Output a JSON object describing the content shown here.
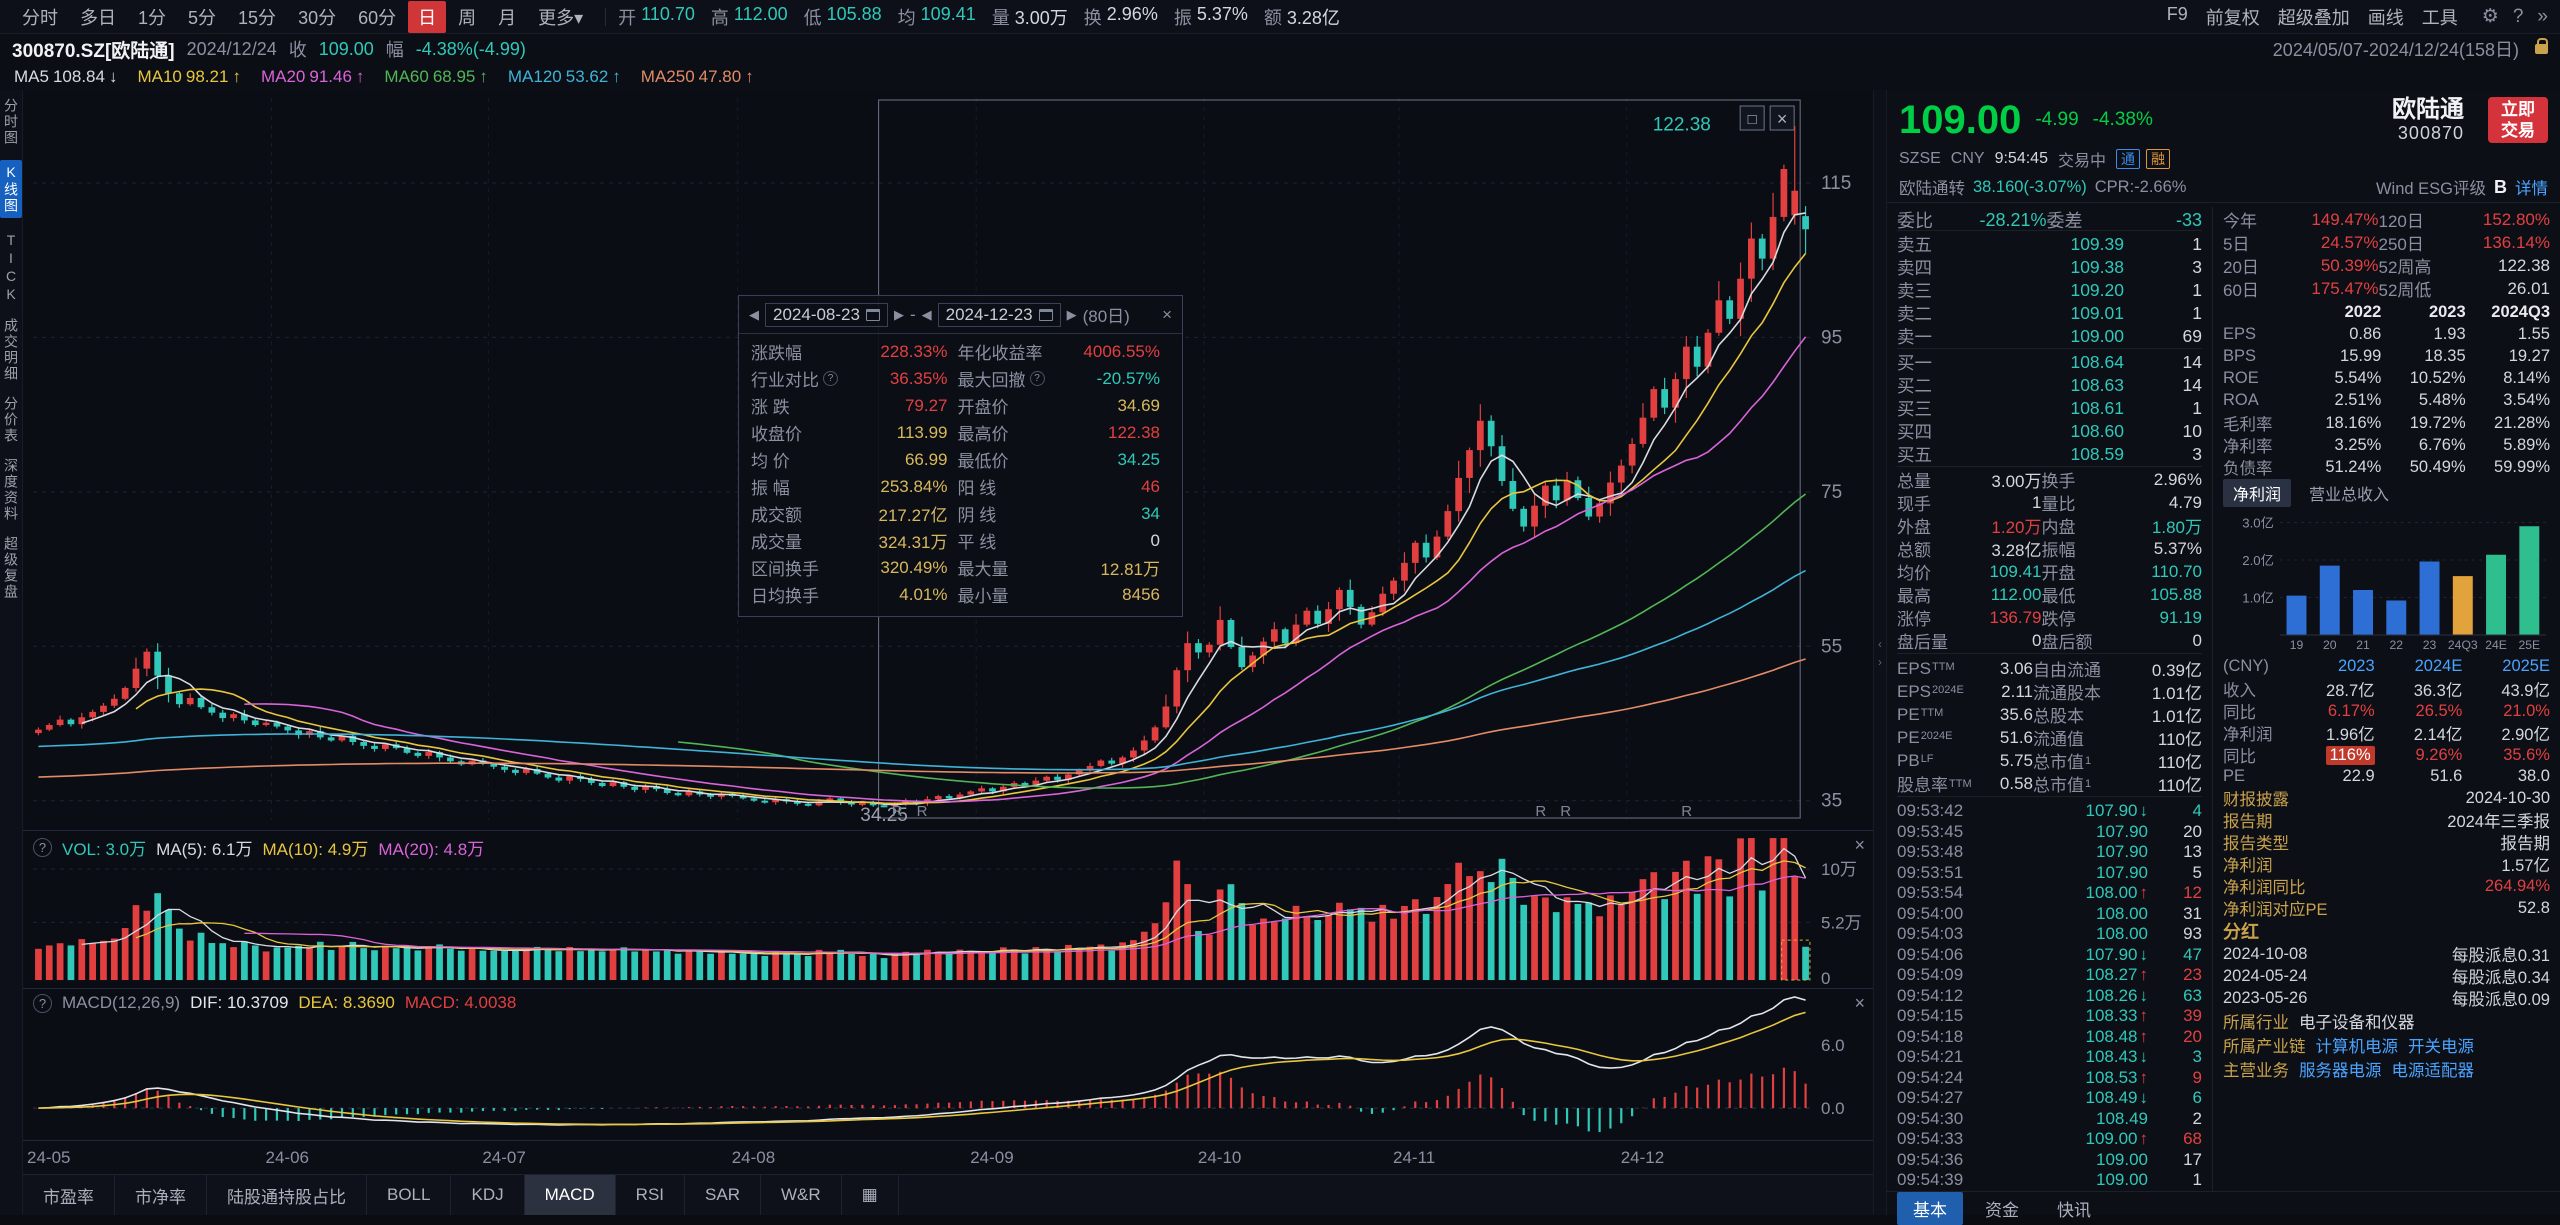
{
  "colors": {
    "up": "#e24040",
    "down": "#2fc8b9",
    "price_green": "#00cf46",
    "tab_red": "#d03538",
    "gold": "#c9a24b",
    "link": "#4aa3ff"
  },
  "glyphs": {
    "prev": "◀",
    "next": "▶",
    "close": "×",
    "box": "□",
    "gear": "⚙",
    "help": "?",
    "collapse": "»",
    "grid": "▦",
    "caret": "▾",
    "up": "↑",
    "down": "↓",
    "left": "‹",
    "right": "›"
  },
  "toolbar": {
    "periods": [
      "分时",
      "多日",
      "1分",
      "5分",
      "15分",
      "30分",
      "60分",
      "日",
      "周",
      "月",
      "更多"
    ],
    "active_index": 7,
    "stats": [
      {
        "l": "开",
        "v": "110.70",
        "c": "down"
      },
      {
        "l": "高",
        "v": "112.00",
        "c": "down"
      },
      {
        "l": "低",
        "v": "105.88",
        "c": "down"
      },
      {
        "l": "均",
        "v": "109.41",
        "c": "down"
      },
      {
        "l": "量",
        "v": "3.00万",
        "c": "plain"
      },
      {
        "l": "换",
        "v": "2.96%",
        "c": "plain"
      },
      {
        "l": "振",
        "v": "5.37%",
        "c": "plain"
      },
      {
        "l": "额",
        "v": "3.28亿",
        "c": "plain"
      }
    ],
    "tools": [
      "F9",
      "前复权",
      "超级叠加",
      "画线",
      "工具"
    ]
  },
  "info_bar": {
    "code": "300870.SZ[欧陆通]",
    "date": "2024/12/24",
    "close_label": "收",
    "close": "109.00",
    "amp_label": "幅",
    "amp": "-4.38%(-4.99)",
    "range": "2024/05/07-2024/12/24(158日)"
  },
  "ma_bar": [
    {
      "label": "MA5",
      "value": "108.84",
      "arrow": "↓",
      "color": "#d8dbe0"
    },
    {
      "label": "MA10",
      "value": "98.21",
      "arrow": "↑",
      "color": "#e8c63e"
    },
    {
      "label": "MA20",
      "value": "91.46",
      "arrow": "↑",
      "color": "#d964d9"
    },
    {
      "label": "MA60",
      "value": "68.95",
      "arrow": "↑",
      "color": "#52b556"
    },
    {
      "label": "MA120",
      "value": "53.62",
      "arrow": "↑",
      "color": "#3fb3d8"
    },
    {
      "label": "MA250",
      "value": "47.80",
      "arrow": "↑",
      "color": "#e28b66"
    }
  ],
  "left_tabs": [
    {
      "label": "分时图"
    },
    {
      "label": "K线图",
      "active": true
    },
    {
      "label": "TICK"
    },
    {
      "label": "成交明细"
    },
    {
      "label": "分价表"
    },
    {
      "label": "深度资料"
    },
    {
      "label": "超级复盘"
    }
  ],
  "chart_data": {
    "type": "candlestick",
    "symbol": "300870.SZ 欧陆通 日K",
    "period": "2024/05/07-2024/12/24",
    "ylim": [
      32.5,
      126
    ],
    "y_ticks": [
      115,
      95,
      75,
      55,
      35
    ],
    "x_labels": [
      "24-05",
      "24-06",
      "24-07",
      "24-08",
      "24-09",
      "24-10",
      "24-11",
      "24-12"
    ],
    "month_start_idx": [
      0,
      22,
      42,
      65,
      87,
      108,
      126,
      147
    ],
    "closes": [
      44.2,
      44.8,
      45.5,
      44.9,
      45.8,
      46.5,
      47.3,
      48.2,
      49.6,
      52.1,
      54.3,
      51.2,
      48.9,
      47.5,
      48.3,
      47.1,
      46.4,
      45.7,
      46.2,
      45.4,
      44.8,
      45.1,
      44.6,
      44.1,
      43.5,
      44.0,
      43.2,
      42.8,
      43.4,
      42.6,
      42.1,
      41.7,
      42.3,
      41.8,
      41.2,
      40.8,
      41.3,
      40.6,
      40.1,
      39.7,
      40.2,
      39.8,
      39.4,
      39.0,
      38.6,
      39.1,
      38.5,
      38.0,
      37.6,
      38.2,
      37.8,
      37.3,
      36.9,
      37.4,
      36.8,
      36.4,
      36.9,
      36.5,
      36.0,
      35.7,
      36.2,
      35.8,
      35.5,
      35.9,
      35.6,
      35.3,
      35.0,
      34.8,
      35.2,
      34.9,
      34.6,
      34.4,
      34.9,
      35.3,
      34.8,
      34.5,
      34.7,
      34.4,
      34.3,
      34.6,
      35.0,
      34.7,
      35.2,
      35.6,
      35.3,
      35.8,
      36.2,
      36.6,
      36.2,
      36.8,
      37.3,
      37.0,
      37.6,
      38.1,
      37.7,
      38.4,
      38.9,
      39.5,
      40.2,
      39.8,
      40.6,
      41.5,
      42.8,
      44.5,
      47.2,
      51.9,
      55.4,
      54.2,
      55.2,
      58.4,
      54.9,
      52.3,
      53.8,
      55.6,
      57.2,
      55.4,
      57.8,
      59.6,
      57.9,
      59.8,
      62.3,
      60.1,
      57.8,
      59.4,
      61.8,
      63.5,
      65.8,
      68.4,
      66.5,
      69.2,
      72.5,
      76.8,
      80.4,
      84.2,
      80.9,
      76.4,
      72.8,
      70.5,
      73.2,
      75.8,
      73.9,
      76.5,
      74.2,
      71.8,
      73.5,
      76.2,
      78.4,
      81.2,
      84.6,
      88.3,
      85.9,
      89.6,
      93.8,
      91.2,
      95.6,
      99.8,
      97.4,
      102.6,
      107.8,
      105.2,
      110.6,
      116.8,
      113.99,
      109.0
    ],
    "last_overrides": [
      {
        "o": 110.7,
        "h": 112.0,
        "l": 105.88,
        "c": 109.0
      },
      {
        "o": 110.8,
        "h": 122.38,
        "l": 109.6,
        "c": 113.99
      }
    ],
    "last_volume": 3.0,
    "ma_lines": [
      {
        "n": 5,
        "color": "#d8dbe0"
      },
      {
        "n": 10,
        "color": "#e8c63e"
      },
      {
        "n": 20,
        "color": "#d964d9"
      },
      {
        "n": 60,
        "color": "#52b556"
      },
      {
        "n": 120,
        "color": "#3fb3d8",
        "ema": true,
        "seed": 42
      },
      {
        "n": 250,
        "color": "#e28b66",
        "ema": true,
        "seed": 38
      }
    ],
    "range_select": {
      "start_idx": 78,
      "end_idx": 162
    },
    "annotations": [
      {
        "text": "122.38",
        "idx": 155,
        "price": 120.5,
        "color": "#2fc8b9",
        "anchor": "end"
      },
      {
        "text": "34.25",
        "idx": 78,
        "price": 34.2,
        "color": "#9aa0ae",
        "anchor": "middle",
        "dy": 14
      }
    ],
    "r_markers": {
      "label": "R",
      "fracs": [
        0.483,
        0.497,
        0.845,
        0.859,
        0.927
      ]
    }
  },
  "range_box": {
    "start": "2024-08-23",
    "end": "2024-12-23",
    "days": "(80日)",
    "rows": [
      {
        "l": "涨跌幅",
        "v": "228.33%",
        "vc": "up",
        "l2": "年化收益率",
        "v2": "4006.55%",
        "v2c": "up"
      },
      {
        "l": "行业对比",
        "lh": true,
        "v": "36.35%",
        "vc": "up",
        "l2": "最大回撤",
        "l2h": true,
        "v2": "-20.57%",
        "v2c": "down"
      },
      {
        "l": "涨 跌",
        "v": "79.27",
        "vc": "up",
        "l2": "开盘价",
        "v2": "34.69",
        "v2c": "num"
      },
      {
        "l": "收盘价",
        "v": "113.99",
        "vc": "num",
        "l2": "最高价",
        "v2": "122.38",
        "v2c": "up"
      },
      {
        "l": "均 价",
        "v": "66.99",
        "vc": "num",
        "l2": "最低价",
        "v2": "34.25",
        "v2c": "down"
      },
      {
        "l": "振 幅",
        "v": "253.84%",
        "vc": "num",
        "l2": "阳 线",
        "v2": "46",
        "v2c": "up"
      },
      {
        "l": "成交额",
        "v": "217.27亿",
        "vc": "num",
        "l2": "阴 线",
        "v2": "34",
        "v2c": "down"
      },
      {
        "l": "成交量",
        "v": "324.31万",
        "vc": "num",
        "l2": "平 线",
        "v2": "0",
        "v2c": "plain"
      },
      {
        "l": "区间换手",
        "v": "320.49%",
        "vc": "num",
        "l2": "最大量",
        "v2": "12.81万",
        "v2c": "num"
      },
      {
        "l": "日均换手",
        "v": "4.01%",
        "vc": "num",
        "l2": "最小量",
        "v2": "8456",
        "v2c": "num"
      }
    ]
  },
  "vol_pane": {
    "title": "VOL:",
    "value": "3.0万",
    "ma5_label": "MA(5):",
    "ma5": "6.1万",
    "ma10_label": "MA(10):",
    "ma10": "4.9万",
    "ma20_label": "MA(20):",
    "ma20": "4.8万",
    "vmax": 12.9,
    "ticks": [
      {
        "label": "10万",
        "v": 10
      },
      {
        "label": "5.2万",
        "v": 5.2
      },
      {
        "label": "0",
        "v": 0
      }
    ]
  },
  "macd_pane": {
    "title": "MACD(12,26,9)",
    "dif_label": "DIF:",
    "dif": "10.3709",
    "dea_label": "DEA:",
    "dea": "8.3690",
    "macd_label": "MACD:",
    "macd": "4.0038",
    "ticks": [
      {
        "label": "6.0",
        "v": 6
      },
      {
        "label": "0.0",
        "v": 0
      }
    ]
  },
  "bottom_tabs": [
    {
      "label": "市盈率"
    },
    {
      "label": "市净率"
    },
    {
      "label": "陆股通持股占比"
    },
    {
      "label": "BOLL"
    },
    {
      "label": "KDJ"
    },
    {
      "label": "MACD",
      "active": true
    },
    {
      "label": "RSI"
    },
    {
      "label": "SAR"
    },
    {
      "label": "W&R"
    }
  ],
  "quote": {
    "price": "109.00",
    "change": "-4.99",
    "pct": "-4.38%",
    "name": "欧陆通",
    "code": "300870",
    "trade_button": "立即交易",
    "exchange": "SZSE",
    "currency": "CNY",
    "time": "9:54:45",
    "status": "交易中",
    "badges": [
      "通",
      "融"
    ],
    "conv_label": "欧陆通转",
    "conv_value": "38.160(-3.07%)",
    "cpr": "CPR:-2.66%",
    "esg_label": "Wind ESG评级",
    "esg_value": "B",
    "detail_link": "详情"
  },
  "order_book": {
    "ratio_label": "委比",
    "ratio": "-28.21%",
    "diff_label": "委差",
    "diff": "-33",
    "asks": [
      {
        "l": "卖五",
        "p": "109.39",
        "q": "1"
      },
      {
        "l": "卖四",
        "p": "109.38",
        "q": "3"
      },
      {
        "l": "卖三",
        "p": "109.20",
        "q": "1"
      },
      {
        "l": "卖二",
        "p": "109.01",
        "q": "1"
      },
      {
        "l": "卖一",
        "p": "109.00",
        "q": "69"
      }
    ],
    "bids": [
      {
        "l": "买一",
        "p": "108.64",
        "q": "14"
      },
      {
        "l": "买二",
        "p": "108.63",
        "q": "14"
      },
      {
        "l": "买三",
        "p": "108.61",
        "q": "1"
      },
      {
        "l": "买四",
        "p": "108.60",
        "q": "10"
      },
      {
        "l": "买五",
        "p": "108.59",
        "q": "3"
      }
    ]
  },
  "detail_rows": [
    {
      "l": "总量",
      "v": "3.00万",
      "vc": "plain",
      "l2": "换手",
      "v2": "2.96%",
      "v2c": "plain"
    },
    {
      "l": "现手",
      "v": "1",
      "vc": "plain",
      "l2": "量比",
      "v2": "4.79",
      "v2c": "plain"
    },
    {
      "l": "外盘",
      "v": "1.20万",
      "vc": "up",
      "l2": "内盘",
      "v2": "1.80万",
      "v2c": "down"
    },
    {
      "l": "总额",
      "v": "3.28亿",
      "vc": "plain",
      "l2": "振幅",
      "v2": "5.37%",
      "v2c": "plain"
    },
    {
      "l": "均价",
      "v": "109.41",
      "vc": "down",
      "l2": "开盘",
      "v2": "110.70",
      "v2c": "down"
    },
    {
      "l": "最高",
      "v": "112.00",
      "vc": "down",
      "l2": "最低",
      "v2": "105.88",
      "v2c": "down"
    },
    {
      "l": "涨停",
      "v": "136.79",
      "vc": "up",
      "l2": "跌停",
      "v2": "91.19",
      "v2c": "down"
    },
    {
      "l": "盘后量",
      "v": "0",
      "vc": "plain",
      "l2": "盘后额",
      "v2": "0",
      "v2c": "plain"
    }
  ],
  "eps_rows": [
    {
      "l": "EPS",
      "ls": "TTM",
      "v": "3.06",
      "rl": "自由流通",
      "rv": "0.39亿"
    },
    {
      "l": "EPS",
      "ls": "2024E",
      "v": "2.11",
      "rl": "流通股本",
      "rv": "1.01亿"
    },
    {
      "l": "PE",
      "ls": "TTM",
      "v": "35.6",
      "rl": "总股本",
      "rv": "1.01亿"
    },
    {
      "l": "PE",
      "ls": "2024E",
      "v": "51.6",
      "rl": "流通值",
      "rv": "110亿"
    },
    {
      "l": "PB",
      "ls": "LF",
      "v": "5.75",
      "rl": "总市值",
      "rls": "1",
      "rv": "110亿"
    },
    {
      "l": "股息率",
      "ls": "TTM",
      "v": "0.58",
      "rl": "总市值",
      "rls": "1",
      "rv": "110亿"
    }
  ],
  "returns": [
    {
      "l": "今年",
      "v": "149.47%",
      "vc": "up",
      "l2": "120日",
      "v2": "152.80%",
      "v2c": "up"
    },
    {
      "l": "5日",
      "v": "24.57%",
      "vc": "up",
      "l2": "250日",
      "v2": "136.14%",
      "v2c": "up"
    },
    {
      "l": "20日",
      "v": "50.39%",
      "vc": "up",
      "l2": "52周高",
      "v2": "122.38",
      "v2c": "plain"
    },
    {
      "l": "60日",
      "v": "175.47%",
      "vc": "up",
      "l2": "52周低",
      "v2": "26.01",
      "v2c": "plain"
    }
  ],
  "fin_table": {
    "years": [
      "2022",
      "2023",
      "2024Q3"
    ],
    "rows": [
      [
        "EPS",
        "0.86",
        "1.93",
        "1.55"
      ],
      [
        "BPS",
        "15.99",
        "18.35",
        "19.27"
      ],
      [
        "ROE",
        "5.54%",
        "10.52%",
        "8.14%"
      ],
      [
        "ROA",
        "2.51%",
        "5.48%",
        "3.54%"
      ],
      [
        "毛利率",
        "18.16%",
        "19.72%",
        "21.28%"
      ],
      [
        "净利率",
        "3.25%",
        "6.76%",
        "5.89%"
      ],
      [
        "负债率",
        "51.24%",
        "50.49%",
        "59.99%"
      ]
    ]
  },
  "profit_tabs": {
    "active": "净利润",
    "other": "营业总收入"
  },
  "profit_chart": {
    "type": "bar",
    "title": "净利润",
    "categories": [
      "19",
      "20",
      "21",
      "22",
      "23",
      "24Q3",
      "24E",
      "25E"
    ],
    "values": [
      1.05,
      1.85,
      1.2,
      0.92,
      1.96,
      1.57,
      2.14,
      2.9
    ],
    "ymax": 3.2,
    "ticks": [
      {
        "label": "3.0亿",
        "v": 3
      },
      {
        "label": "2.0亿",
        "v": 2
      },
      {
        "label": "1.0亿",
        "v": 1
      }
    ],
    "colors": {
      "hist": "#2e6fd6",
      "q": "#e2a23c",
      "est": "#2fbf8f"
    },
    "color_map": [
      "hist",
      "hist",
      "hist",
      "hist",
      "hist",
      "q",
      "est",
      "est"
    ]
  },
  "estimates": {
    "header": [
      "(CNY)",
      "2023",
      "2024E",
      "2025E"
    ],
    "rows": [
      {
        "label": "收入",
        "cells": [
          {
            "v": "28.7亿"
          },
          {
            "v": "36.3亿"
          },
          {
            "v": "43.9亿"
          }
        ]
      },
      {
        "label": "同比",
        "cells": [
          {
            "v": "6.17%",
            "c": "up"
          },
          {
            "v": "26.5%",
            "c": "up"
          },
          {
            "v": "21.0%",
            "c": "up"
          }
        ]
      },
      {
        "label": "净利润",
        "cells": [
          {
            "v": "1.96亿"
          },
          {
            "v": "2.14亿"
          },
          {
            "v": "2.90亿"
          }
        ]
      },
      {
        "label": "同比",
        "cells": [
          {
            "v": "116%",
            "c": "badge"
          },
          {
            "v": "9.26%",
            "c": "up"
          },
          {
            "v": "35.6%",
            "c": "up"
          }
        ]
      },
      {
        "label": "PE",
        "cells": [
          {
            "v": "22.9"
          },
          {
            "v": "51.6"
          },
          {
            "v": "38.0"
          }
        ]
      }
    ]
  },
  "report": [
    {
      "l": "财报披露",
      "v": "2024-10-30"
    },
    {
      "l": "报告期",
      "v": "2024年三季报"
    },
    {
      "l": "报告类型",
      "v": "报告期"
    },
    {
      "l": "净利润",
      "v": "1.57亿"
    },
    {
      "l": "净利润同比",
      "v": "264.94%",
      "vc": "up"
    },
    {
      "l": "净利润对应PE",
      "v": "52.8"
    }
  ],
  "dividends": {
    "title": "分红",
    "rows": [
      {
        "d": "2024-10-08",
        "v": "每股派息0.31"
      },
      {
        "d": "2024-05-24",
        "v": "每股派息0.34"
      },
      {
        "d": "2023-05-26",
        "v": "每股派息0.09"
      }
    ]
  },
  "industry": [
    {
      "l": "所属行业",
      "vals": [
        "电子设备和仪器"
      ],
      "link": false
    },
    {
      "l": "所属产业链",
      "vals": [
        "计算机电源",
        "开关电源"
      ],
      "link": true
    },
    {
      "l": "主营业务",
      "vals": [
        "服务器电源",
        "电源适配器"
      ],
      "link": true
    }
  ],
  "tape": [
    [
      "09:53:42",
      "107.90",
      "↓",
      "4",
      "down"
    ],
    [
      "09:53:45",
      "107.90",
      "",
      "20",
      "flat"
    ],
    [
      "09:53:48",
      "107.90",
      "",
      "13",
      "flat"
    ],
    [
      "09:53:51",
      "107.90",
      "",
      "5",
      "flat"
    ],
    [
      "09:53:54",
      "108.00",
      "↑",
      "12",
      "up"
    ],
    [
      "09:54:00",
      "108.00",
      "",
      "31",
      "flat"
    ],
    [
      "09:54:03",
      "108.00",
      "",
      "93",
      "flat"
    ],
    [
      "09:54:06",
      "107.90",
      "↓",
      "47",
      "down"
    ],
    [
      "09:54:09",
      "108.27",
      "↑",
      "23",
      "up"
    ],
    [
      "09:54:12",
      "108.26",
      "↓",
      "63",
      "down"
    ],
    [
      "09:54:15",
      "108.33",
      "↑",
      "39",
      "up"
    ],
    [
      "09:54:18",
      "108.48",
      "↑",
      "20",
      "up"
    ],
    [
      "09:54:21",
      "108.43",
      "↓",
      "3",
      "down"
    ],
    [
      "09:54:24",
      "108.53",
      "↑",
      "9",
      "up"
    ],
    [
      "09:54:27",
      "108.49",
      "↓",
      "6",
      "down"
    ],
    [
      "09:54:30",
      "108.49",
      "",
      "2",
      "flat"
    ],
    [
      "09:54:33",
      "109.00",
      "↑",
      "68",
      "up"
    ],
    [
      "09:54:36",
      "109.00",
      "",
      "17",
      "flat"
    ],
    [
      "09:54:39",
      "109.00",
      "",
      "1",
      "flat"
    ]
  ],
  "panel_tabs": [
    {
      "label": "基本",
      "active": true
    },
    {
      "label": "资金"
    },
    {
      "label": "快讯"
    }
  ]
}
